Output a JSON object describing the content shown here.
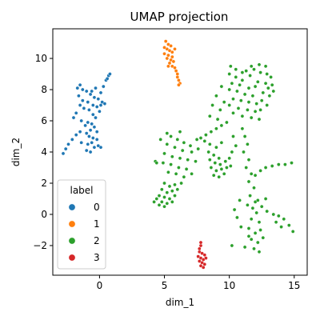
{
  "chart_data": {
    "type": "scatter",
    "title": "UMAP projection",
    "xlabel": "dim_1",
    "ylabel": "dim_2",
    "xlim": [
      -3.6,
      16.0
    ],
    "ylim": [
      -3.9,
      11.9
    ],
    "x_ticks": [
      0,
      5,
      10,
      15
    ],
    "y_ticks": [
      -2,
      0,
      2,
      4,
      6,
      8,
      10
    ],
    "grid": false,
    "legend": {
      "title": "label",
      "placement": "lower-left",
      "entries": [
        {
          "label": "0",
          "color": "#1f77b4"
        },
        {
          "label": "1",
          "color": "#ff7f0e"
        },
        {
          "label": "2",
          "color": "#2ca02c"
        },
        {
          "label": "3",
          "color": "#d62728"
        }
      ]
    },
    "series": [
      {
        "name": "0",
        "color": "#1f77b4",
        "points": [
          [
            -1.5,
            8.3
          ],
          [
            -1.3,
            8.0
          ],
          [
            -1.0,
            7.9
          ],
          [
            -0.7,
            7.7
          ],
          [
            -0.4,
            7.5
          ],
          [
            -0.1,
            7.4
          ],
          [
            0.2,
            7.2
          ],
          [
            0.1,
            7.0
          ],
          [
            -1.6,
            7.6
          ],
          [
            -1.3,
            7.3
          ],
          [
            -0.9,
            7.2
          ],
          [
            -0.5,
            7.0
          ],
          [
            -0.2,
            6.9
          ],
          [
            -1.2,
            6.8
          ],
          [
            -0.8,
            6.7
          ],
          [
            -0.5,
            6.4
          ],
          [
            -1.8,
            6.5
          ],
          [
            -2.0,
            6.2
          ],
          [
            -1.4,
            6.0
          ],
          [
            -0.9,
            5.9
          ],
          [
            -0.6,
            5.8
          ],
          [
            -0.4,
            5.6
          ],
          [
            -0.7,
            5.4
          ],
          [
            -1.0,
            5.2
          ],
          [
            -0.8,
            5.0
          ],
          [
            -0.5,
            4.9
          ],
          [
            -0.2,
            4.8
          ],
          [
            -0.6,
            4.6
          ],
          [
            -0.9,
            4.5
          ],
          [
            -0.4,
            4.3
          ],
          [
            -0.1,
            4.4
          ],
          [
            0.1,
            4.3
          ],
          [
            -1.0,
            4.1
          ],
          [
            -0.7,
            4.0
          ],
          [
            -2.6,
            4.2
          ],
          [
            -2.8,
            3.9
          ],
          [
            -2.4,
            4.5
          ],
          [
            -2.1,
            4.8
          ],
          [
            -1.8,
            5.1
          ],
          [
            -1.5,
            5.3
          ],
          [
            0.3,
            8.2
          ],
          [
            0.5,
            8.6
          ],
          [
            0.7,
            8.9
          ],
          [
            0.8,
            9.0
          ],
          [
            0.6,
            8.7
          ],
          [
            -0.3,
            8.1
          ],
          [
            0.1,
            7.8
          ],
          [
            0.4,
            7.1
          ],
          [
            -1.1,
            5.7
          ],
          [
            -0.3,
            6.2
          ],
          [
            -1.5,
            7.0
          ],
          [
            -0.2,
            5.3
          ],
          [
            -1.4,
            4.6
          ],
          [
            -0.6,
            7.9
          ],
          [
            -1.7,
            8.1
          ],
          [
            0.0,
            6.6
          ]
        ]
      },
      {
        "name": "1",
        "color": "#ff7f0e",
        "points": [
          [
            5.1,
            11.1
          ],
          [
            5.3,
            10.9
          ],
          [
            5.5,
            10.8
          ],
          [
            5.2,
            10.6
          ],
          [
            5.4,
            10.5
          ],
          [
            5.6,
            10.4
          ],
          [
            5.0,
            10.3
          ],
          [
            5.3,
            10.2
          ],
          [
            5.6,
            10.1
          ],
          [
            5.2,
            10.0
          ],
          [
            5.5,
            9.9
          ],
          [
            5.7,
            9.8
          ],
          [
            5.4,
            9.7
          ],
          [
            5.6,
            9.5
          ],
          [
            5.8,
            9.4
          ],
          [
            5.9,
            9.2
          ],
          [
            6.0,
            9.0
          ],
          [
            6.0,
            8.8
          ],
          [
            6.1,
            8.6
          ],
          [
            6.2,
            8.4
          ],
          [
            6.1,
            8.3
          ],
          [
            5.0,
            10.7
          ],
          [
            5.8,
            10.6
          ],
          [
            5.3,
            9.5
          ]
        ]
      },
      {
        "name": "2",
        "color": "#2ca02c",
        "points": [
          [
            10.0,
            9.0
          ],
          [
            10.5,
            8.8
          ],
          [
            11.0,
            8.6
          ],
          [
            10.2,
            8.4
          ],
          [
            10.8,
            8.3
          ],
          [
            11.5,
            8.1
          ],
          [
            10.0,
            8.0
          ],
          [
            10.6,
            7.9
          ],
          [
            11.2,
            7.7
          ],
          [
            11.8,
            7.6
          ],
          [
            10.3,
            7.4
          ],
          [
            10.9,
            7.3
          ],
          [
            11.5,
            7.2
          ],
          [
            12.1,
            7.1
          ],
          [
            10.0,
            7.0
          ],
          [
            10.7,
            6.8
          ],
          [
            11.4,
            6.7
          ],
          [
            12.0,
            6.6
          ],
          [
            10.3,
            6.5
          ],
          [
            11.0,
            6.3
          ],
          [
            11.7,
            6.2
          ],
          [
            12.3,
            6.1
          ],
          [
            9.4,
            8.2
          ],
          [
            9.0,
            7.6
          ],
          [
            9.6,
            7.2
          ],
          [
            8.7,
            7.0
          ],
          [
            9.3,
            6.7
          ],
          [
            8.5,
            6.3
          ],
          [
            9.1,
            6.1
          ],
          [
            11.9,
            9.3
          ],
          [
            12.4,
            9.1
          ],
          [
            12.9,
            9.0
          ],
          [
            13.2,
            8.8
          ],
          [
            11.6,
            8.9
          ],
          [
            12.2,
            8.5
          ],
          [
            12.8,
            8.4
          ],
          [
            13.3,
            8.3
          ],
          [
            13.4,
            7.9
          ],
          [
            12.6,
            7.8
          ],
          [
            13.1,
            7.6
          ],
          [
            12.5,
            7.3
          ],
          [
            12.9,
            7.0
          ],
          [
            12.4,
            6.7
          ],
          [
            13.0,
            8.1
          ],
          [
            11.7,
            9.5
          ],
          [
            12.3,
            9.6
          ],
          [
            12.8,
            9.5
          ],
          [
            11.3,
            9.2
          ],
          [
            12.0,
            8.2
          ],
          [
            10.1,
            9.5
          ],
          [
            10.5,
            9.3
          ],
          [
            11.0,
            9.1
          ],
          [
            5.5,
            5.0
          ],
          [
            6.0,
            4.8
          ],
          [
            6.5,
            4.6
          ],
          [
            7.0,
            4.4
          ],
          [
            5.2,
            4.5
          ],
          [
            5.8,
            4.3
          ],
          [
            6.4,
            4.1
          ],
          [
            7.1,
            4.0
          ],
          [
            7.6,
            4.2
          ],
          [
            5.0,
            3.9
          ],
          [
            5.6,
            3.7
          ],
          [
            6.2,
            3.6
          ],
          [
            6.8,
            3.5
          ],
          [
            7.4,
            3.4
          ],
          [
            4.9,
            3.3
          ],
          [
            5.5,
            3.2
          ],
          [
            6.1,
            3.0
          ],
          [
            6.7,
            2.9
          ],
          [
            5.3,
            2.7
          ],
          [
            5.9,
            2.6
          ],
          [
            6.5,
            2.4
          ],
          [
            7.1,
            2.6
          ],
          [
            4.7,
            4.8
          ],
          [
            5.2,
            5.2
          ],
          [
            6.2,
            5.3
          ],
          [
            7.5,
            4.8
          ],
          [
            7.8,
            4.9
          ],
          [
            8.2,
            5.1
          ],
          [
            8.6,
            5.3
          ],
          [
            9.0,
            5.5
          ],
          [
            9.4,
            5.7
          ],
          [
            9.8,
            5.9
          ],
          [
            8.1,
            4.7
          ],
          [
            8.5,
            4.5
          ],
          [
            9.0,
            4.3
          ],
          [
            9.4,
            4.6
          ],
          [
            4.3,
            3.4
          ],
          [
            4.4,
            3.3
          ],
          [
            8.4,
            4.0
          ],
          [
            8.8,
            3.8
          ],
          [
            9.2,
            3.6
          ],
          [
            8.5,
            3.5
          ],
          [
            8.9,
            3.3
          ],
          [
            9.3,
            3.2
          ],
          [
            9.7,
            3.4
          ],
          [
            10.0,
            3.6
          ],
          [
            8.6,
            3.0
          ],
          [
            9.0,
            2.8
          ],
          [
            9.4,
            2.9
          ],
          [
            9.8,
            3.0
          ],
          [
            10.1,
            3.1
          ],
          [
            8.8,
            2.5
          ],
          [
            9.2,
            2.4
          ],
          [
            9.6,
            2.6
          ],
          [
            10.2,
            4.0
          ],
          [
            10.5,
            4.4
          ],
          [
            10.3,
            5.0
          ],
          [
            5.0,
            2.0
          ],
          [
            5.4,
            1.8
          ],
          [
            5.8,
            1.9
          ],
          [
            4.8,
            1.6
          ],
          [
            5.2,
            1.4
          ],
          [
            5.6,
            1.5
          ],
          [
            4.6,
            1.2
          ],
          [
            5.0,
            1.1
          ],
          [
            5.4,
            1.0
          ],
          [
            5.8,
            1.2
          ],
          [
            4.4,
            1.0
          ],
          [
            4.8,
            0.8
          ],
          [
            5.2,
            0.7
          ],
          [
            5.6,
            0.8
          ],
          [
            4.6,
            0.6
          ],
          [
            5.0,
            0.5
          ],
          [
            6.0,
            1.6
          ],
          [
            6.3,
            2.0
          ],
          [
            4.2,
            0.8
          ],
          [
            11.0,
            5.5
          ],
          [
            11.2,
            5.0
          ],
          [
            11.4,
            4.5
          ],
          [
            11.1,
            4.0
          ],
          [
            11.5,
            3.5
          ],
          [
            11.3,
            3.0
          ],
          [
            11.7,
            2.6
          ],
          [
            11.5,
            2.1
          ],
          [
            11.9,
            1.7
          ],
          [
            11.6,
            1.2
          ],
          [
            12.0,
            0.8
          ],
          [
            11.8,
            0.4
          ],
          [
            12.2,
            0.9
          ],
          [
            12.5,
            0.5
          ],
          [
            11.4,
            0.6
          ],
          [
            12.1,
            0.1
          ],
          [
            11.7,
            -0.3
          ],
          [
            12.3,
            -0.5
          ],
          [
            11.5,
            -0.9
          ],
          [
            12.0,
            -1.2
          ],
          [
            12.4,
            -1.0
          ],
          [
            11.7,
            -1.6
          ],
          [
            12.2,
            -1.8
          ],
          [
            11.9,
            -2.2
          ],
          [
            11.5,
            -1.4
          ],
          [
            12.6,
            -1.5
          ],
          [
            10.9,
            -0.8
          ],
          [
            10.6,
            -0.2
          ],
          [
            10.4,
            0.3
          ],
          [
            10.8,
            0.9
          ],
          [
            12.8,
            1.0
          ],
          [
            12.9,
            0.2
          ],
          [
            13.4,
            0.0
          ],
          [
            13.8,
            -0.1
          ],
          [
            14.2,
            -0.3
          ],
          [
            14.6,
            -0.7
          ],
          [
            14.9,
            -1.1
          ],
          [
            13.6,
            -0.5
          ],
          [
            14.0,
            -0.8
          ],
          [
            12.3,
            -2.4
          ],
          [
            12.8,
            3.0
          ],
          [
            13.3,
            3.1
          ],
          [
            13.8,
            3.2
          ],
          [
            14.3,
            3.2
          ],
          [
            14.8,
            3.3
          ],
          [
            12.4,
            2.8
          ],
          [
            12.0,
            2.5
          ],
          [
            10.2,
            -2.0
          ],
          [
            11.2,
            -2.1
          ]
        ]
      },
      {
        "name": "3",
        "color": "#d62728",
        "points": [
          [
            7.7,
            -2.4
          ],
          [
            7.9,
            -2.5
          ],
          [
            8.1,
            -2.6
          ],
          [
            7.6,
            -2.7
          ],
          [
            7.8,
            -2.8
          ],
          [
            8.0,
            -2.9
          ],
          [
            8.2,
            -2.8
          ],
          [
            7.7,
            -3.0
          ],
          [
            7.9,
            -3.1
          ],
          [
            8.1,
            -3.2
          ],
          [
            7.8,
            -3.3
          ],
          [
            8.0,
            -3.4
          ],
          [
            7.7,
            -2.2
          ],
          [
            7.8,
            -2.0
          ],
          [
            7.8,
            -1.8
          ]
        ]
      }
    ]
  }
}
